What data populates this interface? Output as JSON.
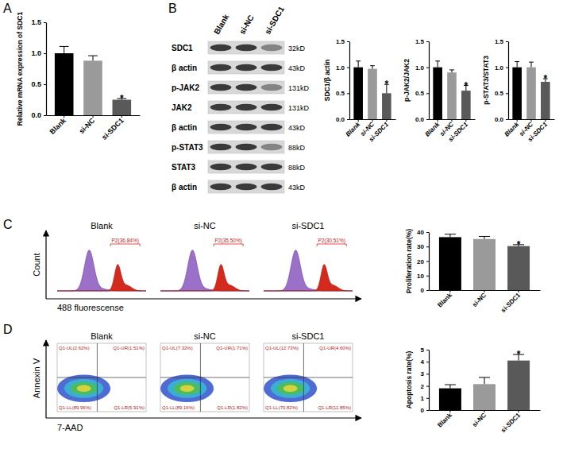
{
  "panel_letters": [
    "A",
    "B",
    "C",
    "D"
  ],
  "chart_data": [
    {
      "type": "bar",
      "categories": [
        "Blank",
        "si-NC",
        "si-SDC1"
      ],
      "values": [
        1.0,
        0.88,
        0.25
      ],
      "errors": [
        0.11,
        0.08,
        0.02
      ],
      "colors": [
        "#000000",
        "#9a9a9a",
        "#595959"
      ],
      "ylabel": "Relative mRNA expression of SDC1",
      "ylim": [
        0,
        1.5
      ],
      "yticks": [
        {
          "value": 0,
          "label": "0.0"
        },
        {
          "value": 0.5,
          "label": "0.5"
        },
        {
          "value": 1,
          "label": "1.0"
        },
        {
          "value": 1.5,
          "label": "1.5"
        }
      ],
      "annotations": [
        {
          "category": "si-SDC1",
          "text": "*"
        }
      ]
    },
    {
      "type": "bar",
      "categories": [
        "Blank",
        "si-NC",
        "si-SDC1"
      ],
      "values": [
        1.0,
        0.97,
        0.5
      ],
      "errors": [
        0.12,
        0.06,
        0.17
      ],
      "colors": [
        "#000000",
        "#9a9a9a",
        "#595959"
      ],
      "ylabel": "SDC1/β actin",
      "ylim": [
        0,
        1.5
      ],
      "yticks": [
        {
          "value": 0,
          "label": "0.0"
        },
        {
          "value": 0.5,
          "label": "0.5"
        },
        {
          "value": 1,
          "label": "1.0"
        },
        {
          "value": 1.5,
          "label": "1.5"
        }
      ],
      "annotations": [
        {
          "category": "si-SDC1",
          "text": "*"
        }
      ]
    },
    {
      "type": "bar",
      "categories": [
        "Blank",
        "si-NC",
        "si-SDC1"
      ],
      "values": [
        1.0,
        0.9,
        0.55
      ],
      "errors": [
        0.12,
        0.05,
        0.1
      ],
      "colors": [
        "#000000",
        "#9a9a9a",
        "#595959"
      ],
      "ylabel": "p-JAK2/JAK2",
      "ylim": [
        0,
        1.5
      ],
      "yticks": [
        {
          "value": 0,
          "label": "0.0"
        },
        {
          "value": 0.5,
          "label": "0.5"
        },
        {
          "value": 1,
          "label": "1.0"
        },
        {
          "value": 1.5,
          "label": "1.5"
        }
      ],
      "annotations": [
        {
          "category": "si-SDC1",
          "text": "*"
        }
      ]
    },
    {
      "type": "bar",
      "categories": [
        "Blank",
        "si-NC",
        "si-SDC1"
      ],
      "values": [
        1.0,
        1.0,
        0.72
      ],
      "errors": [
        0.11,
        0.1,
        0.06
      ],
      "colors": [
        "#000000",
        "#9a9a9a",
        "#595959"
      ],
      "ylabel": "p-STAT3/STAT3",
      "ylim": [
        0,
        1.5
      ],
      "yticks": [
        {
          "value": 0,
          "label": "0.0"
        },
        {
          "value": 0.5,
          "label": "0.5"
        },
        {
          "value": 1,
          "label": "1.0"
        },
        {
          "value": 1.5,
          "label": "1.5"
        }
      ],
      "annotations": [
        {
          "category": "si-SDC1",
          "text": "*"
        }
      ]
    },
    {
      "type": "bar",
      "categories": [
        "Blank",
        "si-NC",
        "si-SDC1"
      ],
      "values": [
        36.5,
        35.2,
        30.3
      ],
      "errors": [
        2.0,
        1.8,
        1.0
      ],
      "colors": [
        "#000000",
        "#9a9a9a",
        "#595959"
      ],
      "ylabel": "Proliferation rate(%)",
      "ylim": [
        0,
        40
      ],
      "yticks": [
        0,
        10,
        20,
        30,
        40
      ],
      "annotations": [
        {
          "category": "si-SDC1",
          "text": "*"
        }
      ]
    },
    {
      "type": "bar",
      "categories": [
        "Blank",
        "si-NC",
        "si-SDC1"
      ],
      "values": [
        1.8,
        2.15,
        4.1
      ],
      "errors": [
        0.3,
        0.55,
        0.5
      ],
      "colors": [
        "#000000",
        "#9a9a9a",
        "#595959"
      ],
      "ylabel": "Apoptosis rate(%)",
      "ylim": [
        0,
        5
      ],
      "yticks": [
        0,
        1,
        2,
        3,
        4,
        5
      ],
      "annotations": [
        {
          "category": "si-SDC1",
          "text": "*"
        }
      ]
    }
  ],
  "blot": {
    "lanes": [
      "Blank",
      "si-NC",
      "si-SDC1"
    ],
    "rows": [
      {
        "protein": "SDC1",
        "size": "32kD"
      },
      {
        "protein": "β actin",
        "size": "43kD"
      },
      {
        "protein": "p-JAK2",
        "size": "131kD"
      },
      {
        "protein": "JAK2",
        "size": "131kD"
      },
      {
        "protein": "β actin",
        "size": "43kD"
      },
      {
        "protein": "p-STAT3",
        "size": "88kD"
      },
      {
        "protein": "STAT3",
        "size": "88kD"
      },
      {
        "protein": "β actin",
        "size": "43kD"
      }
    ]
  },
  "flow_histograms": {
    "y_label": "Count",
    "x_label": "488 fluorescense",
    "panels": [
      {
        "title": "Blank",
        "gate": "P2(36.84%)"
      },
      {
        "title": "si-NC",
        "gate": "P2(35.50%)"
      },
      {
        "title": "si-SDC1",
        "gate": "P2(30.51%)"
      }
    ]
  },
  "flow_scatter": {
    "y_label": "Annexin Ⅴ",
    "x_label": "7-AAD",
    "panels": [
      {
        "title": "Blank",
        "quadrants": [
          "Q1-UL(2.62%)",
          "Q1-UR(1.51%)",
          "Q1-LL(89.96%)",
          "Q1-LR(5.91%)"
        ]
      },
      {
        "title": "si-NC",
        "quadrants": [
          "Q1-UL(7.32%)",
          "Q1-UR(1.71%)",
          "Q1-LL(89.16%)",
          "Q1-LR(1.82%)"
        ]
      },
      {
        "title": "si-SDC1",
        "quadrants": [
          "Q1-UL(12.73%)",
          "Q1-UR(4.60%)",
          "Q1-LL(70.82%)",
          "Q1-LR(11.85%)"
        ]
      }
    ]
  }
}
